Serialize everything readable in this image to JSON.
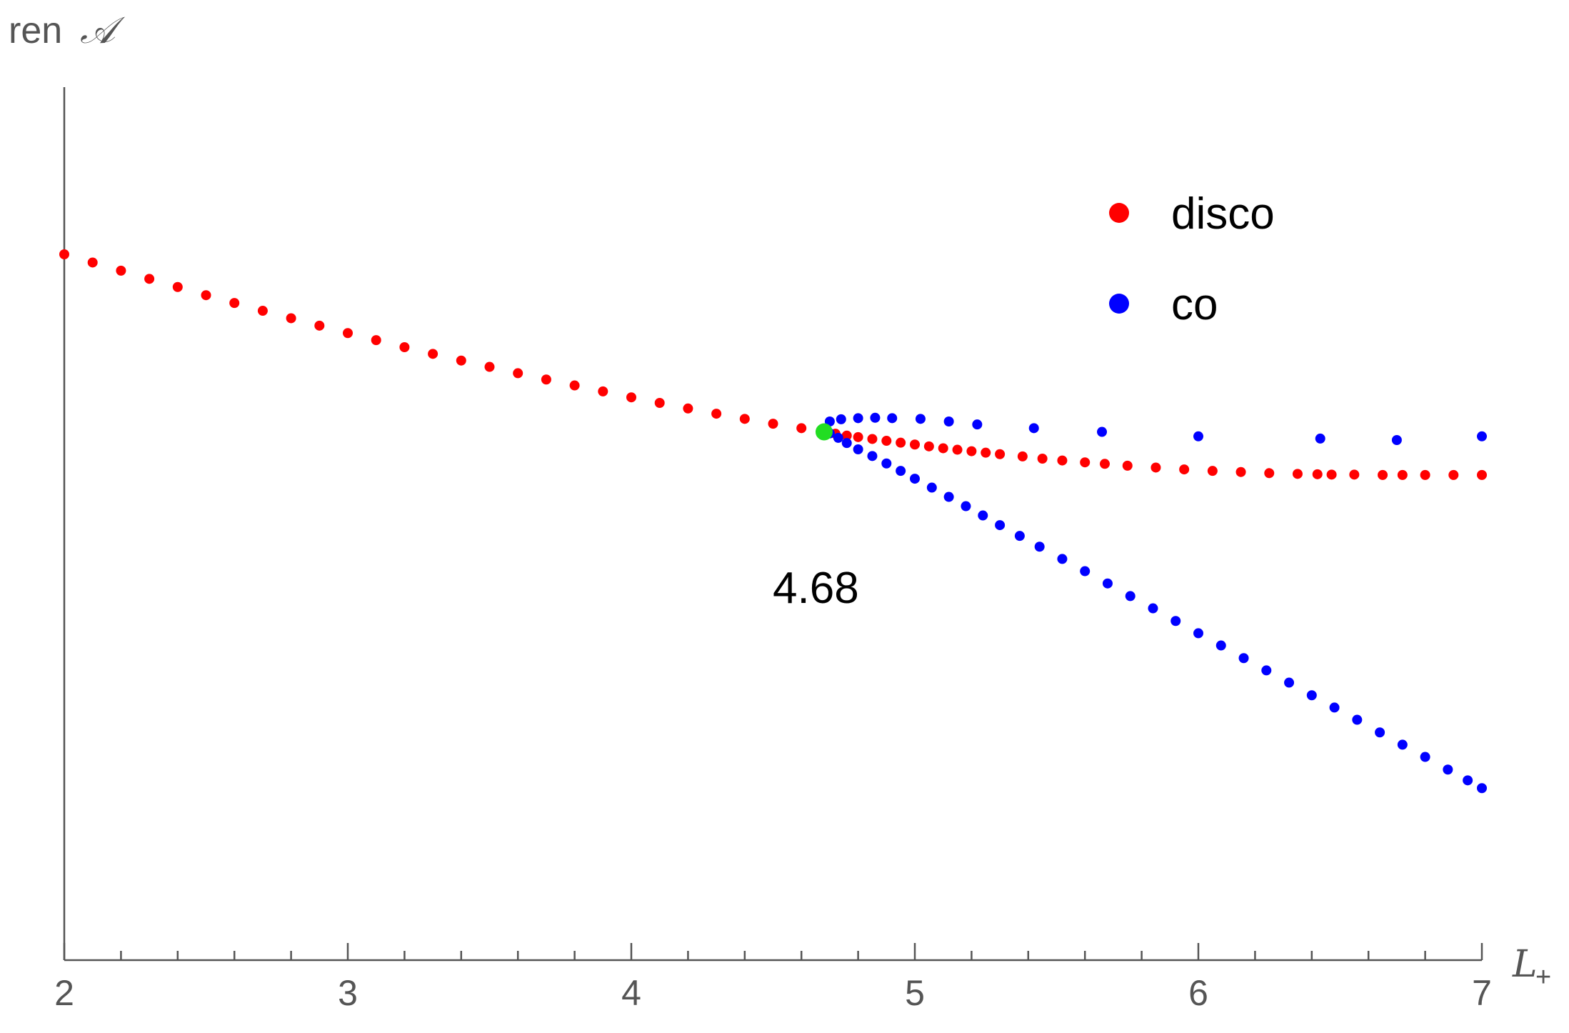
{
  "chart_data": {
    "type": "scatter",
    "title": "",
    "xlabel_main": "L",
    "xlabel_sub": "+",
    "ylabel_prefix": "ren",
    "ylabel_symbol": "𝒜",
    "xlim": [
      2,
      7
    ],
    "ylim": [
      -1.7,
      0.65
    ],
    "x_ticks_major": [
      2,
      3,
      4,
      5,
      6,
      7
    ],
    "x_tick_labels": [
      "2",
      "3",
      "4",
      "5",
      "6",
      "7"
    ],
    "x_ticks_minor_step": 0.2,
    "y_ticks": [],
    "grid": false,
    "legend_position": "top-right",
    "series": [
      {
        "name": "disco",
        "color": "#ff0000",
        "x": [
          2.0,
          2.1,
          2.2,
          2.3,
          2.4,
          2.5,
          2.6,
          2.7,
          2.8,
          2.9,
          3.0,
          3.1,
          3.2,
          3.3,
          3.4,
          3.5,
          3.6,
          3.7,
          3.8,
          3.9,
          4.0,
          4.1,
          4.2,
          4.3,
          4.4,
          4.5,
          4.6,
          4.68,
          4.72,
          4.76,
          4.8,
          4.85,
          4.9,
          4.95,
          5.0,
          5.05,
          5.1,
          5.15,
          5.2,
          5.25,
          5.3,
          5.38,
          5.45,
          5.52,
          5.6,
          5.67,
          5.75,
          5.85,
          5.95,
          6.05,
          6.15,
          6.25,
          6.35,
          6.42,
          6.47,
          6.55,
          6.65,
          6.72,
          6.8,
          6.9,
          7.0
        ],
        "y": [
          0.2,
          0.178,
          0.156,
          0.134,
          0.112,
          0.09,
          0.069,
          0.048,
          0.028,
          0.008,
          -0.012,
          -0.031,
          -0.05,
          -0.068,
          -0.086,
          -0.103,
          -0.12,
          -0.137,
          -0.153,
          -0.169,
          -0.185,
          -0.2,
          -0.215,
          -0.229,
          -0.243,
          -0.256,
          -0.268,
          -0.278,
          -0.283,
          -0.288,
          -0.292,
          -0.297,
          -0.302,
          -0.307,
          -0.312,
          -0.317,
          -0.322,
          -0.326,
          -0.33,
          -0.334,
          -0.338,
          -0.344,
          -0.35,
          -0.355,
          -0.36,
          -0.364,
          -0.369,
          -0.374,
          -0.379,
          -0.383,
          -0.386,
          -0.389,
          -0.391,
          -0.392,
          -0.393,
          -0.393,
          -0.394,
          -0.394,
          -0.394,
          -0.394,
          -0.394
        ]
      },
      {
        "name": "co",
        "color": "#0000ff",
        "x": [
          4.7,
          4.74,
          4.8,
          4.86,
          4.92,
          5.02,
          5.12,
          5.22,
          5.42,
          5.66,
          6.0,
          6.43,
          6.7,
          7.0
        ],
        "y": [
          -0.25,
          -0.244,
          -0.241,
          -0.24,
          -0.241,
          -0.243,
          -0.25,
          -0.258,
          -0.268,
          -0.278,
          -0.29,
          -0.296,
          -0.3,
          -0.29
        ],
        "x_lower": [
          4.7,
          4.73,
          4.76,
          4.8,
          4.85,
          4.9,
          4.95,
          5.0,
          5.06,
          5.12,
          5.18,
          5.24,
          5.3,
          5.37,
          5.44,
          5.52,
          5.6,
          5.68,
          5.76,
          5.84,
          5.92,
          6.0,
          6.08,
          6.16,
          6.24,
          6.32,
          6.4,
          6.48,
          6.56,
          6.64,
          6.72,
          6.8,
          6.88,
          6.95,
          7.0
        ],
        "y_lower": [
          -0.282,
          -0.294,
          -0.308,
          -0.325,
          -0.343,
          -0.363,
          -0.383,
          -0.404,
          -0.428,
          -0.453,
          -0.478,
          -0.503,
          -0.529,
          -0.558,
          -0.587,
          -0.62,
          -0.653,
          -0.686,
          -0.72,
          -0.753,
          -0.787,
          -0.82,
          -0.853,
          -0.887,
          -0.92,
          -0.953,
          -0.987,
          -1.02,
          -1.053,
          -1.087,
          -1.12,
          -1.153,
          -1.187,
          -1.216,
          -1.237
        ]
      }
    ],
    "highlight_point": {
      "x": 4.68,
      "y": -0.278,
      "color": "#22dd22"
    },
    "annotation": "4.68"
  }
}
